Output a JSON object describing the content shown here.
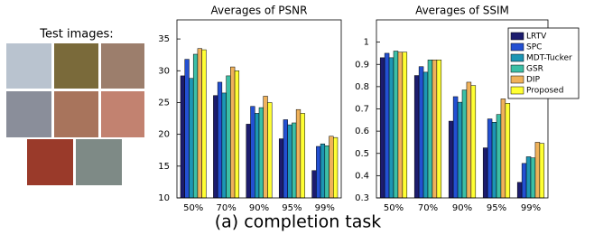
{
  "test_images_label": "Test images:",
  "caption": "(a) completion task",
  "chart_data": [
    {
      "type": "bar",
      "title": "Averages of PSNR",
      "categories": [
        "50%",
        "70%",
        "90%",
        "95%",
        "99%"
      ],
      "ylim": [
        10,
        38
      ],
      "yticks": [
        10,
        15,
        20,
        25,
        30,
        35
      ],
      "series": [
        {
          "name": "LRTV",
          "color": "#1c1c6e",
          "values": [
            29.2,
            26.1,
            21.6,
            19.3,
            14.3
          ]
        },
        {
          "name": "SPC",
          "color": "#2350d2",
          "values": [
            31.8,
            28.2,
            24.4,
            22.3,
            18.1
          ]
        },
        {
          "name": "MDT-Tucker",
          "color": "#1d96b4",
          "values": [
            28.8,
            26.5,
            23.3,
            21.5,
            18.5
          ]
        },
        {
          "name": "GSR",
          "color": "#3cbfa6",
          "values": [
            32.6,
            29.2,
            24.2,
            21.8,
            18.2
          ]
        },
        {
          "name": "DIP",
          "color": "#f0b25a",
          "values": [
            33.5,
            30.6,
            26.0,
            23.9,
            19.7
          ]
        },
        {
          "name": "Proposed",
          "color": "#ffff33",
          "values": [
            33.3,
            30.0,
            25.0,
            23.3,
            19.5
          ]
        }
      ]
    },
    {
      "type": "bar",
      "title": "Averages of SSIM",
      "categories": [
        "50%",
        "70%",
        "90%",
        "95%",
        "99%"
      ],
      "ylim": [
        0.3,
        1.1
      ],
      "yticks": [
        0.3,
        0.4,
        0.5,
        0.6,
        0.7,
        0.8,
        0.9,
        1
      ],
      "legend": "upper right",
      "series": [
        {
          "name": "LRTV",
          "color": "#1c1c6e",
          "values": [
            0.93,
            0.85,
            0.645,
            0.525,
            0.37
          ]
        },
        {
          "name": "SPC",
          "color": "#2350d2",
          "values": [
            0.95,
            0.89,
            0.755,
            0.655,
            0.455
          ]
        },
        {
          "name": "MDT-Tucker",
          "color": "#1d96b4",
          "values": [
            0.93,
            0.865,
            0.73,
            0.64,
            0.485
          ]
        },
        {
          "name": "GSR",
          "color": "#3cbfa6",
          "values": [
            0.96,
            0.92,
            0.785,
            0.675,
            0.48
          ]
        },
        {
          "name": "DIP",
          "color": "#f0b25a",
          "values": [
            0.955,
            0.92,
            0.82,
            0.745,
            0.55
          ]
        },
        {
          "name": "Proposed",
          "color": "#ffff33",
          "values": [
            0.955,
            0.92,
            0.805,
            0.725,
            0.545
          ]
        }
      ]
    }
  ]
}
